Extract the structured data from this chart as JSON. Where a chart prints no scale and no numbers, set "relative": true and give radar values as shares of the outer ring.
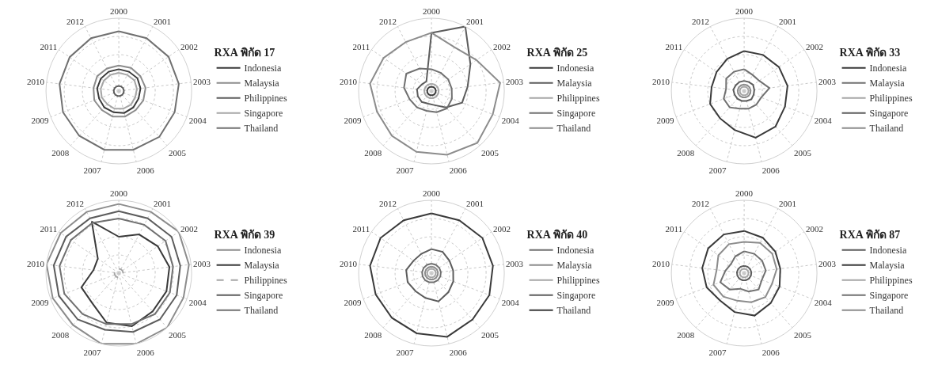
{
  "chart_data": [
    {
      "type": "radar",
      "relative": true,
      "legend_title": "RXA พิกัด 17",
      "legend": "right",
      "grid": true,
      "categories": [
        "2000",
        "2001",
        "2002",
        "2003",
        "2004",
        "2005",
        "2006",
        "2007",
        "2008",
        "2009",
        "2010",
        "2011",
        "2012"
      ],
      "series": [
        {
          "name": "Indonesia",
          "color": "#3a3a3a",
          "values": [
            0.3,
            0.3,
            0.31,
            0.3,
            0.29,
            0.3,
            0.31,
            0.3,
            0.3,
            0.29,
            0.3,
            0.3,
            0.3
          ]
        },
        {
          "name": "Malaysia",
          "color": "#8c8c8c",
          "values": [
            0.35,
            0.36,
            0.36,
            0.37,
            0.36,
            0.35,
            0.36,
            0.36,
            0.35,
            0.36,
            0.35,
            0.36,
            0.35
          ]
        },
        {
          "name": "Philippines",
          "color": "#5c5c5c",
          "values": [
            0.07,
            0.07,
            0.07,
            0.07,
            0.07,
            0.07,
            0.07,
            0.07,
            0.07,
            0.07,
            0.07,
            0.07,
            0.07
          ]
        },
        {
          "name": "Singapore",
          "color": "#a6a6a6",
          "values": [
            0.25,
            0.25,
            0.26,
            0.25,
            0.24,
            0.25,
            0.25,
            0.25,
            0.24,
            0.25,
            0.25,
            0.25,
            0.25
          ]
        },
        {
          "name": "Thailand",
          "color": "#707070",
          "values": [
            0.82,
            0.82,
            0.83,
            0.83,
            0.82,
            0.84,
            0.83,
            0.83,
            0.82,
            0.82,
            0.82,
            0.82,
            0.82
          ]
        }
      ]
    },
    {
      "type": "radar",
      "relative": true,
      "legend_title": "RXA พิกัด 25",
      "legend": "right",
      "grid": true,
      "categories": [
        "2000",
        "2001",
        "2002",
        "2003",
        "2004",
        "2005",
        "2006",
        "2007",
        "2008",
        "2009",
        "2010",
        "2011",
        "2012"
      ],
      "series": [
        {
          "name": "Indonesia",
          "color": "#3a3a3a",
          "values": [
            0.06,
            0.06,
            0.06,
            0.06,
            0.06,
            0.06,
            0.06,
            0.06,
            0.06,
            0.06,
            0.06,
            0.06,
            0.06
          ]
        },
        {
          "name": "Malaysia",
          "color": "#5c5c5c",
          "values": [
            0.8,
            1.0,
            0.65,
            0.5,
            0.45,
            0.3,
            0.2,
            0.18,
            0.2,
            0.2,
            0.2,
            0.16,
            0.15
          ]
        },
        {
          "name": "Philippines",
          "color": "#a6a6a6",
          "values": [
            0.1,
            0.1,
            0.1,
            0.1,
            0.1,
            0.1,
            0.1,
            0.1,
            0.1,
            0.1,
            0.1,
            0.1,
            0.1
          ]
        },
        {
          "name": "Singapore",
          "color": "#707070",
          "values": [
            0.3,
            0.28,
            0.28,
            0.28,
            0.3,
            0.32,
            0.3,
            0.28,
            0.3,
            0.32,
            0.38,
            0.42,
            0.35
          ]
        },
        {
          "name": "Thailand",
          "color": "#8c8c8c",
          "values": [
            0.8,
            0.68,
            0.75,
            0.95,
            0.9,
            0.95,
            0.9,
            0.86,
            0.82,
            0.8,
            0.85,
            0.8,
            0.76
          ]
        }
      ]
    },
    {
      "type": "radar",
      "relative": true,
      "legend_title": "RXA พิกัด 33",
      "legend": "right",
      "grid": true,
      "categories": [
        "2000",
        "2001",
        "2002",
        "2003",
        "2004",
        "2005",
        "2006",
        "2007",
        "2008",
        "2009",
        "2010",
        "2011",
        "2012"
      ],
      "series": [
        {
          "name": "Indonesia",
          "color": "#3a3a3a",
          "values": [
            0.55,
            0.56,
            0.58,
            0.6,
            0.6,
            0.65,
            0.66,
            0.55,
            0.5,
            0.5,
            0.45,
            0.46,
            0.5
          ]
        },
        {
          "name": "Malaysia",
          "color": "#707070",
          "values": [
            0.3,
            0.25,
            0.25,
            0.35,
            0.25,
            0.25,
            0.25,
            0.25,
            0.3,
            0.3,
            0.25,
            0.3,
            0.3
          ]
        },
        {
          "name": "Philippines",
          "color": "#a6a6a6",
          "values": [
            0.06,
            0.06,
            0.06,
            0.06,
            0.06,
            0.06,
            0.06,
            0.06,
            0.06,
            0.06,
            0.06,
            0.06,
            0.06
          ]
        },
        {
          "name": "Singapore",
          "color": "#5c5c5c",
          "values": [
            0.14,
            0.14,
            0.15,
            0.14,
            0.14,
            0.15,
            0.14,
            0.14,
            0.14,
            0.14,
            0.15,
            0.14,
            0.14
          ]
        },
        {
          "name": "Thailand",
          "color": "#8c8c8c",
          "values": [
            0.09,
            0.09,
            0.09,
            0.09,
            0.09,
            0.09,
            0.09,
            0.09,
            0.09,
            0.09,
            0.09,
            0.09,
            0.09
          ]
        }
      ]
    },
    {
      "type": "radar",
      "relative": true,
      "legend_title": "RXA พิกัด 39",
      "legend": "right",
      "grid": true,
      "categories": [
        "2000",
        "2001",
        "2002",
        "2003",
        "2004",
        "2005",
        "2006",
        "2007",
        "2008",
        "2009",
        "2010",
        "2011",
        "2012"
      ],
      "series": [
        {
          "name": "Indonesia",
          "color": "#8c8c8c",
          "values": [
            0.95,
            0.95,
            1.0,
            0.97,
            0.95,
            1.0,
            1.0,
            1.0,
            0.95,
            0.97,
            1.0,
            0.97,
            0.95
          ]
        },
        {
          "name": "Malaysia",
          "color": "#3a3a3a",
          "values": [
            0.5,
            0.6,
            0.65,
            0.7,
            0.7,
            0.7,
            0.75,
            0.7,
            0.55,
            0.55,
            0.35,
            0.35,
            0.8
          ]
        },
        {
          "name": "Philippines",
          "color": "#a6a6a6",
          "line_style": "dashed",
          "values": [
            0.06,
            0.06,
            0.06,
            0.06,
            0.06,
            0.06,
            0.06,
            0.06,
            0.06,
            0.06,
            0.06,
            0.06,
            0.06
          ]
        },
        {
          "name": "Singapore",
          "color": "#5c5c5c",
          "values": [
            0.85,
            0.85,
            0.88,
            0.85,
            0.85,
            0.85,
            0.83,
            0.8,
            0.85,
            0.88,
            0.9,
            0.88,
            0.85
          ]
        },
        {
          "name": "Thailand",
          "color": "#707070",
          "values": [
            0.75,
            0.75,
            0.78,
            0.75,
            0.75,
            0.75,
            0.72,
            0.72,
            0.75,
            0.8,
            0.82,
            0.8,
            0.78
          ]
        }
      ]
    },
    {
      "type": "radar",
      "relative": true,
      "legend_title": "RXA พิกัด 40",
      "legend": "right",
      "grid": true,
      "categories": [
        "2000",
        "2001",
        "2002",
        "2003",
        "2004",
        "2005",
        "2006",
        "2007",
        "2008",
        "2009",
        "2010",
        "2011",
        "2012"
      ],
      "series": [
        {
          "name": "Indonesia",
          "color": "#707070",
          "values": [
            0.13,
            0.13,
            0.13,
            0.13,
            0.13,
            0.13,
            0.13,
            0.13,
            0.13,
            0.13,
            0.13,
            0.13,
            0.13
          ]
        },
        {
          "name": "Malaysia",
          "color": "#8c8c8c",
          "values": [
            0.09,
            0.09,
            0.09,
            0.09,
            0.09,
            0.09,
            0.09,
            0.09,
            0.09,
            0.09,
            0.09,
            0.09,
            0.09
          ]
        },
        {
          "name": "Philippines",
          "color": "#a6a6a6",
          "values": [
            0.06,
            0.06,
            0.06,
            0.06,
            0.06,
            0.06,
            0.06,
            0.06,
            0.06,
            0.06,
            0.06,
            0.06,
            0.06
          ]
        },
        {
          "name": "Singapore",
          "color": "#5c5c5c",
          "values": [
            0.33,
            0.33,
            0.3,
            0.3,
            0.32,
            0.35,
            0.4,
            0.35,
            0.33,
            0.35,
            0.35,
            0.3,
            0.3
          ]
        },
        {
          "name": "Thailand",
          "color": "#3a3a3a",
          "values": [
            0.82,
            0.82,
            0.85,
            0.85,
            0.85,
            0.85,
            0.9,
            0.85,
            0.82,
            0.82,
            0.85,
            0.85,
            0.82
          ]
        }
      ]
    },
    {
      "type": "radar",
      "relative": true,
      "legend_title": "RXA พิกัด 87",
      "legend": "right",
      "grid": true,
      "categories": [
        "2000",
        "2001",
        "2002",
        "2003",
        "2004",
        "2005",
        "2006",
        "2007",
        "2008",
        "2009",
        "2010",
        "2011",
        "2012"
      ],
      "series": [
        {
          "name": "Indonesia",
          "color": "#5c5c5c",
          "values": [
            0.1,
            0.1,
            0.1,
            0.1,
            0.1,
            0.1,
            0.1,
            0.1,
            0.1,
            0.1,
            0.1,
            0.1,
            0.1
          ]
        },
        {
          "name": "Malaysia",
          "color": "#3a3a3a",
          "values": [
            0.58,
            0.55,
            0.52,
            0.5,
            0.52,
            0.55,
            0.6,
            0.55,
            0.5,
            0.55,
            0.58,
            0.6,
            0.6
          ]
        },
        {
          "name": "Philippines",
          "color": "#a6a6a6",
          "values": [
            0.06,
            0.06,
            0.06,
            0.06,
            0.06,
            0.06,
            0.06,
            0.06,
            0.06,
            0.06,
            0.06,
            0.06,
            0.06
          ]
        },
        {
          "name": "Singapore",
          "color": "#707070",
          "values": [
            0.3,
            0.3,
            0.3,
            0.3,
            0.26,
            0.3,
            0.26,
            0.22,
            0.3,
            0.35,
            0.26,
            0.22,
            0.26
          ]
        },
        {
          "name": "Thailand",
          "color": "#8c8c8c",
          "values": [
            0.43,
            0.47,
            0.47,
            0.45,
            0.41,
            0.44,
            0.41,
            0.39,
            0.43,
            0.45,
            0.38,
            0.43,
            0.45
          ]
        }
      ]
    }
  ]
}
